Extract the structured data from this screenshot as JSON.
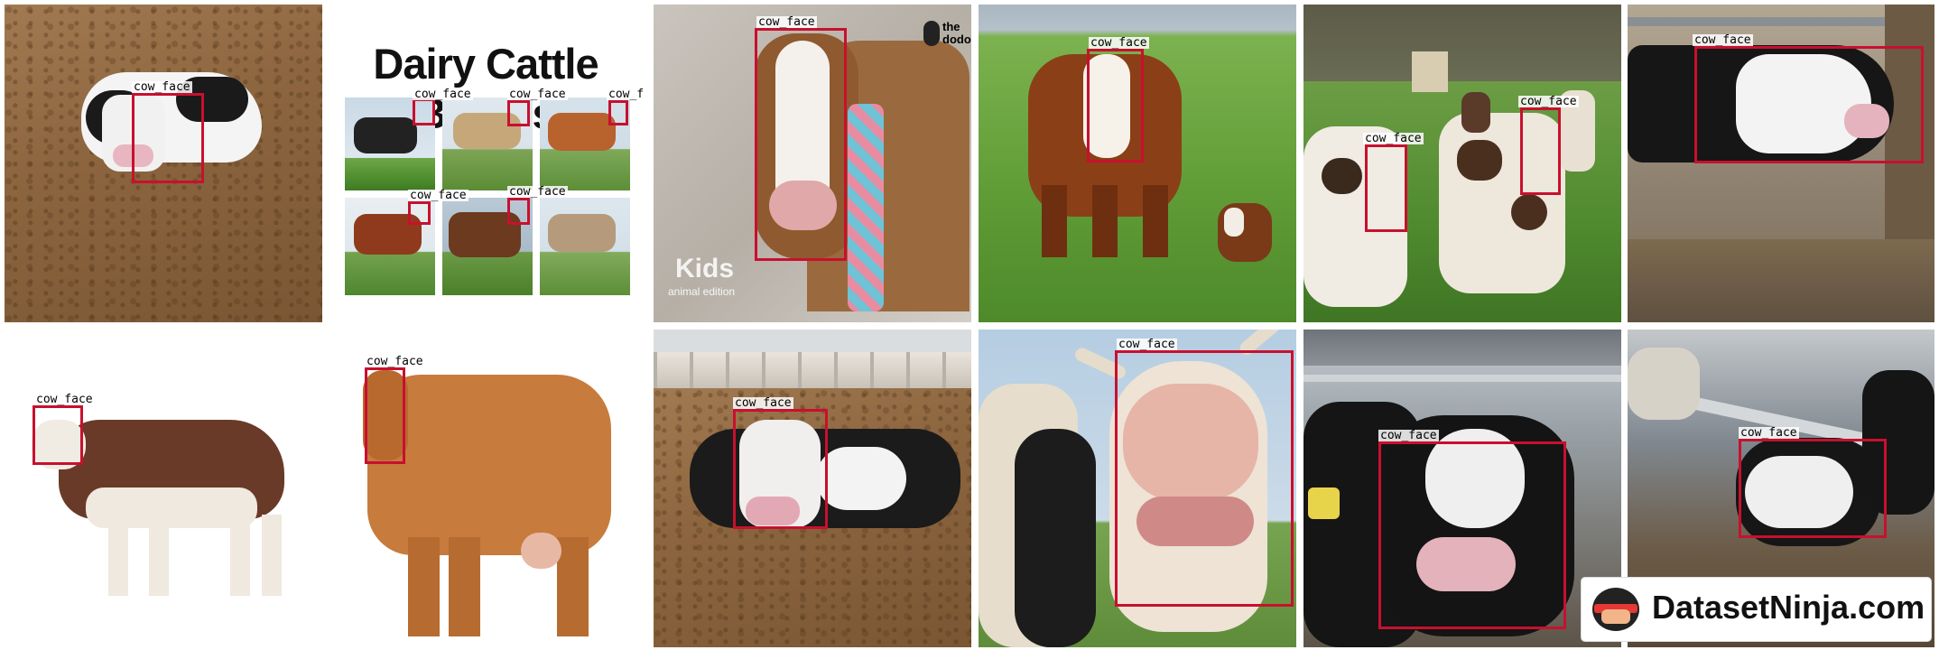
{
  "collage": {
    "tiles": [
      {
        "id": "t1",
        "labels": [
          "cow_face"
        ]
      },
      {
        "id": "t2",
        "title": "Dairy Cattle Breeds",
        "labels": [
          "cow_face",
          "cow_face",
          "cow_fa",
          "cow_face",
          "cow_face"
        ]
      },
      {
        "id": "t3",
        "labels": [
          "cow_face"
        ],
        "overlay_text": [
          "the",
          "dodo",
          "Kids",
          "animal edition"
        ]
      },
      {
        "id": "t4",
        "labels": [
          "cow_face"
        ]
      },
      {
        "id": "t5",
        "labels": [
          "cow_face",
          "cow_face"
        ]
      },
      {
        "id": "t6",
        "labels": [
          "cow_face"
        ]
      },
      {
        "id": "t7",
        "labels": [
          "cow_face"
        ]
      },
      {
        "id": "t8",
        "labels": [
          "cow_face"
        ]
      },
      {
        "id": "t9",
        "labels": [
          "cow_face"
        ]
      },
      {
        "id": "t10",
        "labels": [
          "cow_face"
        ]
      },
      {
        "id": "t11",
        "labels": [
          "cow_face"
        ]
      },
      {
        "id": "t12",
        "labels": [
          "cow_face"
        ]
      }
    ]
  },
  "watermark": {
    "text": "DatasetNinja.com"
  },
  "colors": {
    "bbox": "#c8102e",
    "label_bg": "#ffffff"
  }
}
